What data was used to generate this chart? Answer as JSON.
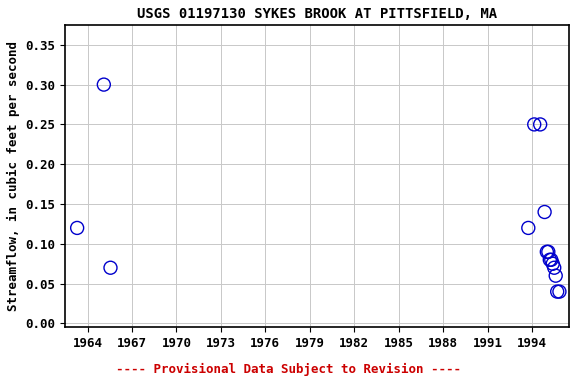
{
  "title": "USGS 01197130 SYKES BROOK AT PITTSFIELD, MA",
  "ylabel": "Streamflow, in cubic feet per second",
  "footnote": "---- Provisional Data Subject to Revision ----",
  "footnote_color": "#cc0000",
  "marker_color": "#0000cc",
  "background_color": "#ffffff",
  "plot_bg_color": "#ffffff",
  "grid_color": "#c8c8c8",
  "xlim": [
    1962.5,
    1996.5
  ],
  "ylim": [
    -0.005,
    0.375
  ],
  "yticks": [
    0.0,
    0.05,
    0.1,
    0.15,
    0.2,
    0.25,
    0.3,
    0.35
  ],
  "xticks": [
    1964,
    1967,
    1970,
    1973,
    1976,
    1979,
    1982,
    1985,
    1988,
    1991,
    1994
  ],
  "data_x": [
    1963.3,
    1965.1,
    1965.55,
    1993.75,
    1994.15,
    1994.55,
    1994.85,
    1995.0,
    1995.1,
    1995.2,
    1995.3,
    1995.4,
    1995.5,
    1995.6,
    1995.7,
    1995.85
  ],
  "data_y": [
    0.12,
    0.3,
    0.07,
    0.12,
    0.25,
    0.25,
    0.14,
    0.09,
    0.09,
    0.08,
    0.08,
    0.075,
    0.07,
    0.06,
    0.04,
    0.04
  ],
  "marker_size": 5,
  "title_fontsize": 10,
  "label_fontsize": 9,
  "tick_fontsize": 9,
  "footnote_fontsize": 9
}
